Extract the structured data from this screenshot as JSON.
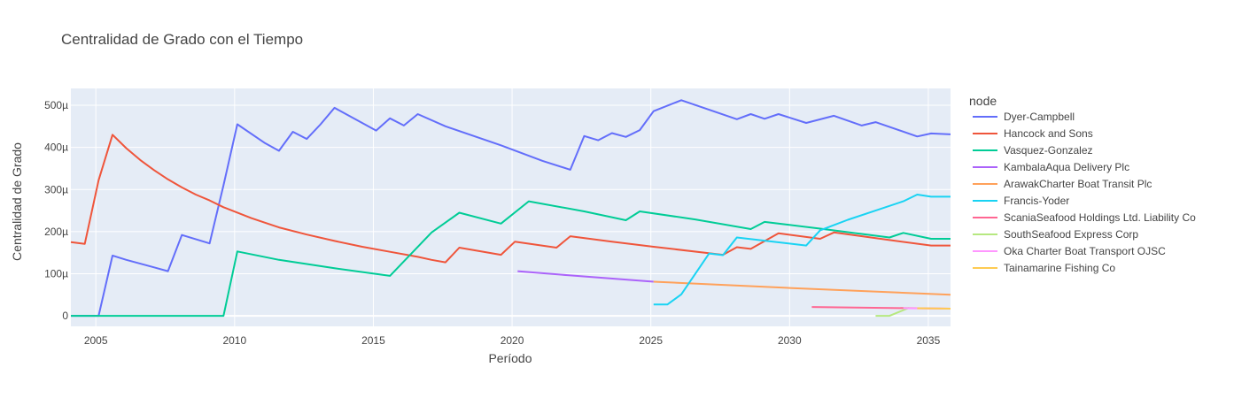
{
  "chart_data": {
    "type": "line",
    "title": "Centralidad de Grado con el Tiempo",
    "xlabel": "Período",
    "ylabel": "Centralidad de Grado",
    "xlim": [
      2004.1,
      2035.8
    ],
    "ylim": [
      -25,
      540
    ],
    "x_ticks": [
      2005,
      2010,
      2015,
      2020,
      2025,
      2030,
      2035
    ],
    "y_ticks": [
      {
        "value": 0,
        "label": "0"
      },
      {
        "value": 100,
        "label": "100µ"
      },
      {
        "value": 200,
        "label": "200µ"
      },
      {
        "value": 300,
        "label": "300µ"
      },
      {
        "value": 400,
        "label": "400µ"
      },
      {
        "value": 500,
        "label": "500µ"
      }
    ],
    "y_unit": "µ",
    "grid": true,
    "legend_title": "node",
    "legend_position": "right",
    "series": [
      {
        "name": "Dyer-Campbell",
        "color": "#636efa",
        "points": [
          [
            2004.1,
            0
          ],
          [
            2005.1,
            0
          ],
          [
            2005.6,
            143
          ],
          [
            2006.1,
            133
          ],
          [
            2007.1,
            115
          ],
          [
            2007.6,
            106
          ],
          [
            2008.1,
            192
          ],
          [
            2009.1,
            172
          ],
          [
            2009.6,
            310
          ],
          [
            2010.1,
            455
          ],
          [
            2011.1,
            410
          ],
          [
            2011.6,
            392
          ],
          [
            2012.1,
            437
          ],
          [
            2012.6,
            420
          ],
          [
            2013.1,
            455
          ],
          [
            2013.6,
            494
          ],
          [
            2015.1,
            440
          ],
          [
            2015.6,
            469
          ],
          [
            2016.1,
            452
          ],
          [
            2016.6,
            479
          ],
          [
            2017.6,
            450
          ],
          [
            2019.6,
            405
          ],
          [
            2021.1,
            368
          ],
          [
            2022.1,
            347
          ],
          [
            2022.6,
            427
          ],
          [
            2023.1,
            417
          ],
          [
            2023.6,
            434
          ],
          [
            2024.1,
            425
          ],
          [
            2024.6,
            441
          ],
          [
            2025.1,
            486
          ],
          [
            2026.1,
            512
          ],
          [
            2028.1,
            467
          ],
          [
            2028.6,
            479
          ],
          [
            2029.1,
            468
          ],
          [
            2029.6,
            479
          ],
          [
            2030.6,
            458
          ],
          [
            2031.6,
            475
          ],
          [
            2032.6,
            452
          ],
          [
            2033.1,
            460
          ],
          [
            2034.6,
            426
          ],
          [
            2035.1,
            433
          ],
          [
            2035.8,
            431
          ]
        ]
      },
      {
        "name": "Hancock and Sons",
        "color": "#ef553b",
        "points": [
          [
            2004.1,
            175
          ],
          [
            2004.6,
            171
          ],
          [
            2005.1,
            322
          ],
          [
            2005.6,
            430
          ],
          [
            2006.1,
            398
          ],
          [
            2006.6,
            370
          ],
          [
            2007.1,
            346
          ],
          [
            2007.6,
            324
          ],
          [
            2008.1,
            305
          ],
          [
            2008.6,
            288
          ],
          [
            2009.1,
            274
          ],
          [
            2009.6,
            258
          ],
          [
            2010.6,
            232
          ],
          [
            2011.6,
            210
          ],
          [
            2012.6,
            193
          ],
          [
            2013.6,
            178
          ],
          [
            2014.6,
            164
          ],
          [
            2015.6,
            152
          ],
          [
            2016.6,
            140
          ],
          [
            2017.1,
            133
          ],
          [
            2017.6,
            127
          ],
          [
            2018.1,
            162
          ],
          [
            2019.6,
            145
          ],
          [
            2020.1,
            176
          ],
          [
            2021.6,
            162
          ],
          [
            2022.1,
            189
          ],
          [
            2023.6,
            176
          ],
          [
            2025.1,
            164
          ],
          [
            2027.6,
            145
          ],
          [
            2028.1,
            163
          ],
          [
            2028.6,
            159
          ],
          [
            2029.6,
            196
          ],
          [
            2031.1,
            183
          ],
          [
            2031.6,
            198
          ],
          [
            2033.6,
            180
          ],
          [
            2035.1,
            167
          ],
          [
            2035.8,
            167
          ]
        ]
      },
      {
        "name": "Vasquez-Gonzalez",
        "color": "#00cc96",
        "points": [
          [
            2004.1,
            0
          ],
          [
            2009.6,
            0
          ],
          [
            2010.1,
            153
          ],
          [
            2011.6,
            133
          ],
          [
            2013.6,
            113
          ],
          [
            2015.6,
            95
          ],
          [
            2017.1,
            198
          ],
          [
            2018.1,
            245
          ],
          [
            2019.6,
            219
          ],
          [
            2020.6,
            272
          ],
          [
            2022.6,
            248
          ],
          [
            2024.1,
            227
          ],
          [
            2024.6,
            248
          ],
          [
            2026.6,
            229
          ],
          [
            2028.6,
            206
          ],
          [
            2029.1,
            223
          ],
          [
            2031.1,
            207
          ],
          [
            2033.6,
            186
          ],
          [
            2034.1,
            197
          ],
          [
            2035.1,
            183
          ],
          [
            2035.8,
            183
          ]
        ]
      },
      {
        "name": "KambalaAqua Delivery Plc",
        "color": "#ab63fa",
        "points": [
          [
            2020.2,
            106
          ],
          [
            2022.1,
            96
          ],
          [
            2025.1,
            81
          ]
        ]
      },
      {
        "name": "ArawakCharter Boat Transit Plc",
        "color": "#ffa15a",
        "points": [
          [
            2025.1,
            81
          ],
          [
            2030.1,
            66
          ],
          [
            2035.8,
            50
          ]
        ]
      },
      {
        "name": "Francis-Yoder",
        "color": "#19d3f3",
        "points": [
          [
            2025.1,
            27
          ],
          [
            2025.6,
            27
          ],
          [
            2026.1,
            51
          ],
          [
            2027.1,
            148
          ],
          [
            2027.6,
            144
          ],
          [
            2028.1,
            186
          ],
          [
            2030.6,
            167
          ],
          [
            2031.1,
            203
          ],
          [
            2032.1,
            228
          ],
          [
            2033.1,
            250
          ],
          [
            2034.1,
            272
          ],
          [
            2034.6,
            288
          ],
          [
            2035.1,
            283
          ],
          [
            2035.8,
            283
          ]
        ]
      },
      {
        "name": "ScaniaSeafood Holdings Ltd. Liability Co",
        "color": "#ff6692",
        "points": [
          [
            2030.8,
            21
          ],
          [
            2035.8,
            17
          ]
        ]
      },
      {
        "name": "SouthSeafood Express Corp",
        "color": "#b6e880",
        "points": [
          [
            2033.1,
            0
          ],
          [
            2033.6,
            0
          ],
          [
            2034.3,
            19
          ]
        ]
      },
      {
        "name": "Oka Charter Boat Transport OJSC",
        "color": "#ff97ff",
        "points": [
          [
            2034.1,
            18
          ],
          [
            2035.8,
            17
          ]
        ]
      },
      {
        "name": "Tainamarine Fishing Co",
        "color": "#fecb52",
        "points": [
          [
            2034.6,
            18
          ],
          [
            2035.8,
            17
          ]
        ]
      }
    ]
  }
}
